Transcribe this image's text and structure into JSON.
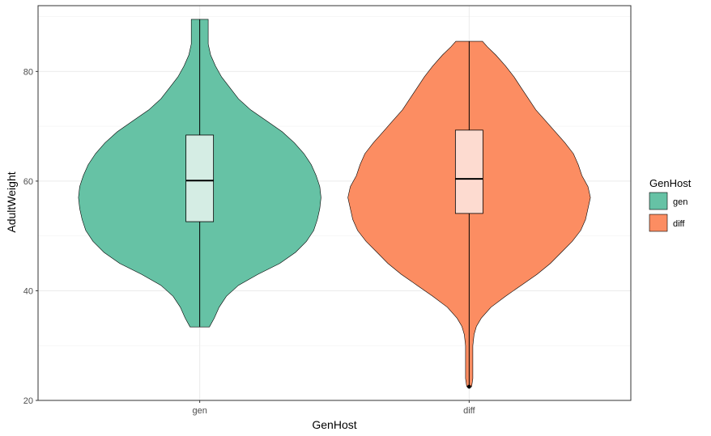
{
  "chart_data": {
    "type": "violin",
    "xlabel": "GenHost",
    "ylabel": "AdultWeight",
    "categories": [
      "gen",
      "diff"
    ],
    "ylim": [
      20,
      92
    ],
    "yticks": [
      20,
      40,
      60,
      80
    ],
    "grid": true,
    "legend": {
      "title": "GenHost",
      "position": "right",
      "entries": [
        {
          "label": "gen",
          "color": "#66c2a5"
        },
        {
          "label": "diff",
          "color": "#fc8d62"
        }
      ]
    },
    "series": [
      {
        "name": "gen",
        "color": "#66c2a5",
        "box_fill": "#d5ede4",
        "min": 33.4,
        "max": 89.5,
        "q1": 52.6,
        "median": 60.1,
        "q3": 68.4,
        "outliers": [],
        "density": [
          [
            33.4,
            0.08
          ],
          [
            35,
            0.12
          ],
          [
            37,
            0.16
          ],
          [
            39,
            0.22
          ],
          [
            41,
            0.32
          ],
          [
            43,
            0.48
          ],
          [
            45,
            0.66
          ],
          [
            47,
            0.79
          ],
          [
            49,
            0.88
          ],
          [
            51,
            0.94
          ],
          [
            53,
            0.97
          ],
          [
            55,
            0.99
          ],
          [
            57,
            1.0
          ],
          [
            59,
            0.99
          ],
          [
            61,
            0.96
          ],
          [
            63,
            0.92
          ],
          [
            65,
            0.86
          ],
          [
            67,
            0.78
          ],
          [
            69,
            0.68
          ],
          [
            71,
            0.55
          ],
          [
            73,
            0.42
          ],
          [
            75,
            0.32
          ],
          [
            77,
            0.25
          ],
          [
            79,
            0.18
          ],
          [
            81,
            0.13
          ],
          [
            83,
            0.09
          ],
          [
            85,
            0.07
          ],
          [
            87,
            0.07
          ],
          [
            89.5,
            0.07
          ]
        ]
      },
      {
        "name": "diff",
        "color": "#fc8d62",
        "box_fill": "#fddbd0",
        "min": 22.5,
        "max": 85.5,
        "q1": 54.1,
        "median": 60.4,
        "q3": 69.3,
        "outliers": [
          22.5
        ],
        "density": [
          [
            22.5,
            0.02
          ],
          [
            24,
            0.03
          ],
          [
            26,
            0.03
          ],
          [
            28,
            0.03
          ],
          [
            30,
            0.03
          ],
          [
            32,
            0.04
          ],
          [
            33.5,
            0.06
          ],
          [
            35,
            0.1
          ],
          [
            37,
            0.18
          ],
          [
            39,
            0.3
          ],
          [
            41,
            0.43
          ],
          [
            43,
            0.56
          ],
          [
            45,
            0.67
          ],
          [
            47,
            0.76
          ],
          [
            49,
            0.85
          ],
          [
            51,
            0.92
          ],
          [
            53,
            0.96
          ],
          [
            55,
            0.98
          ],
          [
            57,
            1.0
          ],
          [
            59,
            0.98
          ],
          [
            61,
            0.93
          ],
          [
            63,
            0.9
          ],
          [
            65,
            0.86
          ],
          [
            67,
            0.79
          ],
          [
            69,
            0.71
          ],
          [
            71,
            0.63
          ],
          [
            73,
            0.55
          ],
          [
            75,
            0.49
          ],
          [
            77,
            0.43
          ],
          [
            79,
            0.37
          ],
          [
            81,
            0.3
          ],
          [
            83,
            0.22
          ],
          [
            84.5,
            0.15
          ],
          [
            85.5,
            0.11
          ]
        ]
      }
    ]
  }
}
